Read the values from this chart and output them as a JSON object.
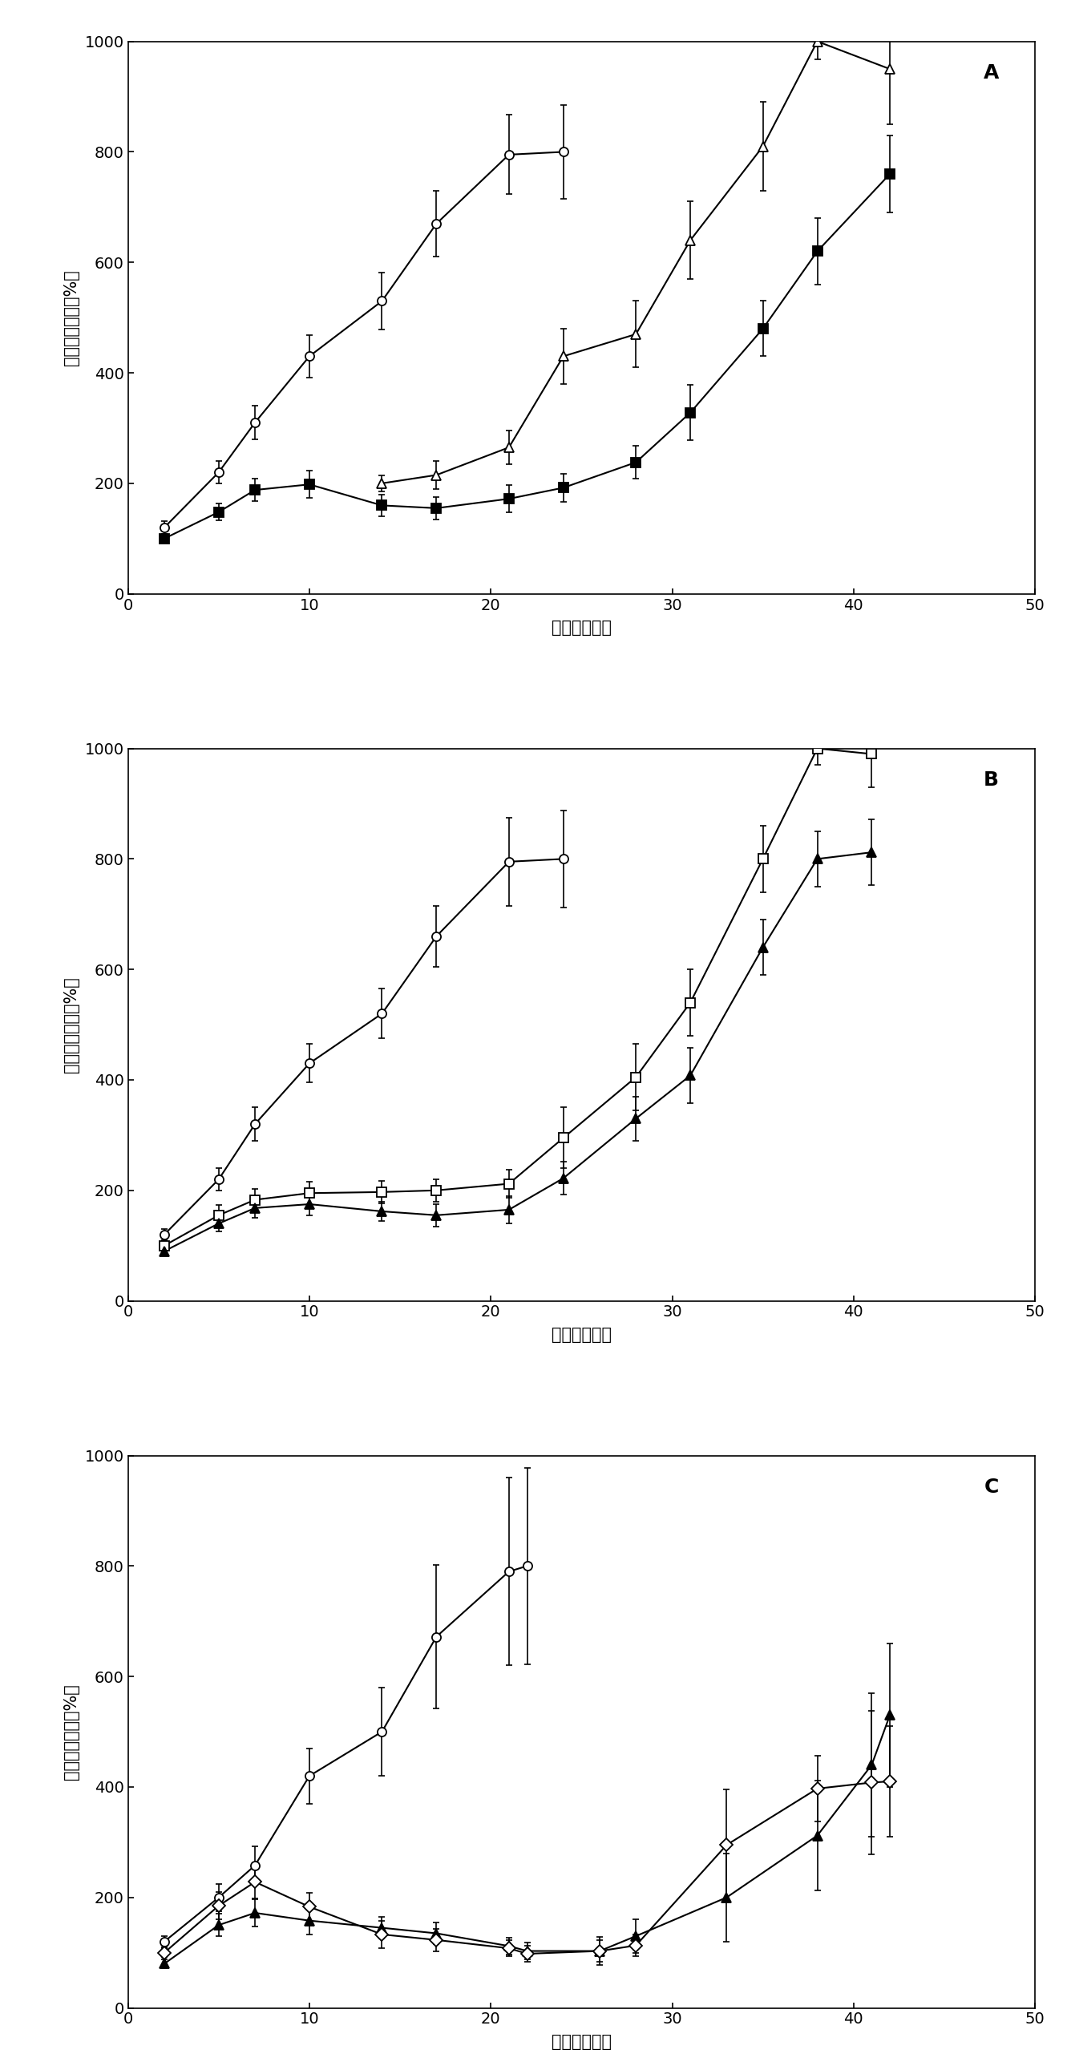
{
  "panels": [
    {
      "label": "A",
      "series": [
        {
          "marker": "o",
          "filled": false,
          "x": [
            2,
            5,
            7,
            10,
            14,
            17,
            21,
            24
          ],
          "y": [
            120,
            220,
            310,
            430,
            530,
            670,
            795,
            800
          ],
          "yerr": [
            12,
            20,
            30,
            38,
            52,
            60,
            72,
            85
          ]
        },
        {
          "marker": "^",
          "filled": false,
          "x": [
            14,
            17,
            21,
            24,
            28,
            31,
            35,
            38,
            42
          ],
          "y": [
            200,
            215,
            265,
            430,
            470,
            640,
            810,
            1000,
            950
          ],
          "yerr": [
            15,
            25,
            30,
            50,
            60,
            70,
            80,
            32,
            100
          ]
        },
        {
          "marker": "s",
          "filled": true,
          "x": [
            2,
            5,
            7,
            10,
            14,
            17,
            21,
            24,
            28,
            31,
            35,
            38,
            42
          ],
          "y": [
            100,
            148,
            188,
            198,
            160,
            155,
            172,
            192,
            238,
            328,
            480,
            620,
            760
          ],
          "yerr": [
            8,
            15,
            20,
            25,
            20,
            20,
            25,
            25,
            30,
            50,
            50,
            60,
            70
          ]
        }
      ]
    },
    {
      "label": "B",
      "series": [
        {
          "marker": "o",
          "filled": false,
          "x": [
            2,
            5,
            7,
            10,
            14,
            17,
            21,
            24
          ],
          "y": [
            120,
            220,
            320,
            430,
            520,
            660,
            795,
            800
          ],
          "yerr": [
            10,
            20,
            30,
            35,
            45,
            55,
            80,
            88
          ]
        },
        {
          "marker": "s",
          "filled": false,
          "x": [
            2,
            5,
            7,
            10,
            14,
            17,
            21,
            24,
            28,
            31,
            35,
            38,
            41
          ],
          "y": [
            100,
            155,
            183,
            195,
            197,
            200,
            212,
            295,
            405,
            540,
            800,
            1000,
            990
          ],
          "yerr": [
            8,
            18,
            20,
            20,
            20,
            20,
            25,
            55,
            60,
            60,
            60,
            30,
            60
          ]
        },
        {
          "marker": "^",
          "filled": true,
          "x": [
            2,
            5,
            7,
            10,
            14,
            17,
            21,
            24,
            28,
            31,
            35,
            38,
            41
          ],
          "y": [
            90,
            140,
            168,
            175,
            162,
            155,
            165,
            222,
            330,
            408,
            640,
            800,
            812
          ],
          "yerr": [
            8,
            15,
            18,
            20,
            18,
            20,
            25,
            30,
            40,
            50,
            50,
            50,
            60
          ]
        }
      ]
    },
    {
      "label": "C",
      "series": [
        {
          "marker": "o",
          "filled": false,
          "x": [
            2,
            5,
            7,
            10,
            14,
            17,
            21,
            22
          ],
          "y": [
            120,
            200,
            258,
            420,
            500,
            672,
            790,
            800
          ],
          "yerr": [
            10,
            25,
            35,
            50,
            80,
            130,
            170,
            178
          ]
        },
        {
          "marker": "^",
          "filled": true,
          "x": [
            2,
            5,
            7,
            10,
            14,
            17,
            21,
            22,
            26,
            28,
            33,
            38,
            41,
            42
          ],
          "y": [
            80,
            150,
            172,
            158,
            145,
            135,
            112,
            103,
            103,
            130,
            200,
            312,
            440,
            530
          ],
          "yerr": [
            8,
            20,
            25,
            25,
            20,
            20,
            15,
            15,
            25,
            30,
            80,
            100,
            130,
            130
          ]
        },
        {
          "marker": "D",
          "filled": false,
          "x": [
            2,
            5,
            7,
            10,
            14,
            17,
            21,
            22,
            26,
            28,
            33,
            38,
            41,
            42
          ],
          "y": [
            100,
            185,
            228,
            183,
            133,
            123,
            108,
            98,
            103,
            113,
            295,
            397,
            408,
            410
          ],
          "yerr": [
            8,
            25,
            30,
            25,
            25,
            20,
            15,
            15,
            20,
            20,
            100,
            60,
            130,
            100
          ]
        }
      ]
    }
  ],
  "ylabel": "相对肿瘾体积（%）",
  "xlabel": "时间（天数）",
  "ylim": [
    0,
    1000
  ],
  "xlim": [
    0,
    50
  ],
  "yticks": [
    0,
    200,
    400,
    600,
    800,
    1000
  ],
  "xticks": [
    0,
    10,
    20,
    30,
    40,
    50
  ],
  "marker_size": 8,
  "linewidth": 1.5,
  "elinewidth": 1.2,
  "capsize": 3,
  "capthick": 1.2
}
